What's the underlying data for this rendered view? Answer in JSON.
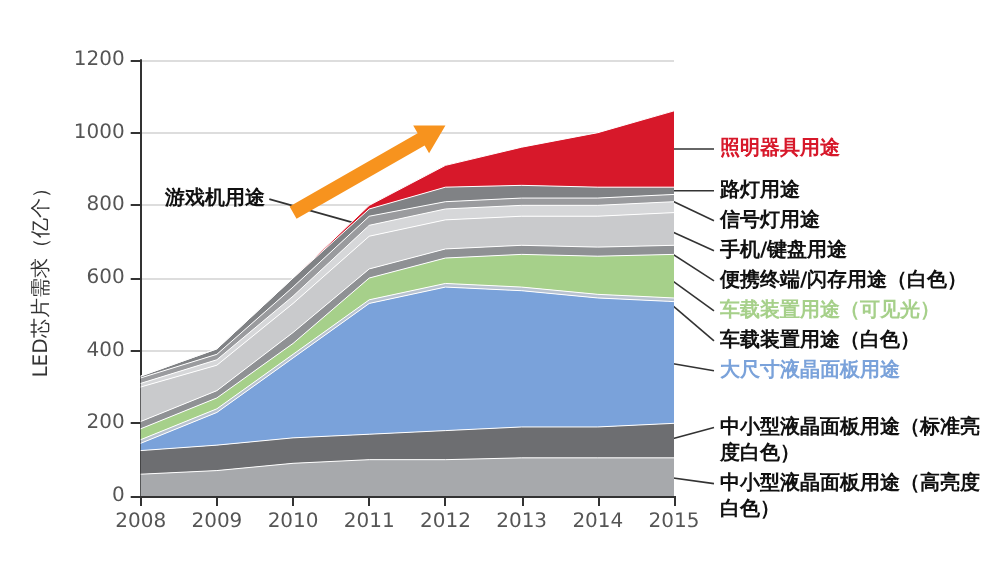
{
  "chart_data": {
    "type": "area",
    "stacked": true,
    "ylabel": "LED芯片需求（亿个）",
    "categories": [
      "2008",
      "2009",
      "2010",
      "2011",
      "2012",
      "2013",
      "2014",
      "2015"
    ],
    "ylim": [
      0,
      1200
    ],
    "yticks": [
      0,
      200,
      400,
      600,
      800,
      1000,
      1200
    ],
    "grid": "y",
    "legend": false,
    "series": [
      {
        "name": "中小型液晶面板用途（高亮度白色）",
        "color": "#a7a9ac",
        "values": [
          60,
          70,
          90,
          100,
          100,
          105,
          105,
          105
        ]
      },
      {
        "name": "中小型液晶面板用途（标准亮度白色）",
        "color": "#6d6e71",
        "values": [
          65,
          70,
          70,
          70,
          80,
          85,
          85,
          95
        ]
      },
      {
        "name": "大尺寸液晶面板用途",
        "color": "#7aa2da",
        "values": [
          20,
          90,
          220,
          360,
          395,
          375,
          355,
          335
        ]
      },
      {
        "name": "车载装置用途（白色）",
        "color": "#b9c3d1",
        "values": [
          10,
          10,
          10,
          10,
          10,
          10,
          10,
          10
        ]
      },
      {
        "name": "车载装置用途（可见光）",
        "color": "#a6d08a",
        "values": [
          30,
          30,
          30,
          60,
          70,
          90,
          105,
          120
        ]
      },
      {
        "name": "便携终端/闪存用途（白色）",
        "color": "#8f9194",
        "values": [
          20,
          20,
          30,
          25,
          25,
          25,
          25,
          25
        ]
      },
      {
        "name": "手机/键盘用途",
        "color": "#c9cacc",
        "values": [
          95,
          70,
          80,
          90,
          80,
          80,
          85,
          90
        ]
      },
      {
        "color": "#d6d7d9",
        "values": [
          10,
          15,
          20,
          30,
          30,
          30,
          30,
          30
        ]
      },
      {
        "name": "信号灯用途",
        "color": "#9a9b9e",
        "values": [
          15,
          15,
          25,
          25,
          20,
          20,
          20,
          20
        ]
      },
      {
        "name": "路灯用途",
        "color": "#808285",
        "values": [
          5,
          15,
          25,
          20,
          40,
          35,
          30,
          20
        ]
      },
      {
        "name": "照明器具用途",
        "color": "#d7182a",
        "values": [
          0,
          0,
          0,
          10,
          60,
          105,
          150,
          210
        ]
      }
    ],
    "annotations": [
      {
        "text": "游戏机用途",
        "x": "2011",
        "y": 740
      }
    ]
  }
}
